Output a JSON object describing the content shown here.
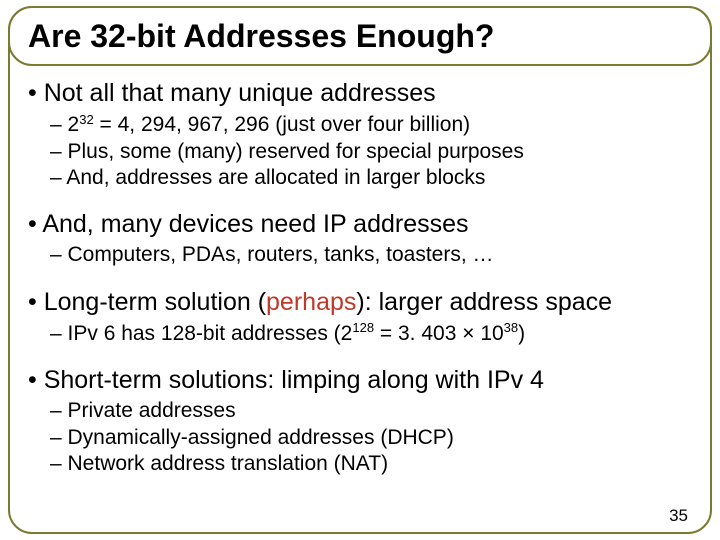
{
  "title": "Are 32-bit Addresses Enough?",
  "sections": [
    {
      "main": "Not all that many unique addresses",
      "subs": [
        {
          "pre": "– 2",
          "exp": "32",
          "post": " = 4, 294, 967, 296 (just over four billion)"
        },
        {
          "text": "– Plus, some (many) reserved for special purposes"
        },
        {
          "text": "– And, addresses are allocated in larger blocks"
        }
      ]
    },
    {
      "main": "And, many devices need IP addresses",
      "subs": [
        {
          "text": "– Computers, PDAs, routers, tanks, toasters, …"
        }
      ]
    },
    {
      "main_pre": "Long-term solution (",
      "main_hl": "perhaps",
      "main_post": "): larger address space",
      "subs": [
        {
          "pre": "– IPv 6 has 128-bit addresses (2",
          "exp": "128",
          "mid": " = 3. 403 × 10",
          "exp2": "38",
          "post": ")"
        }
      ]
    },
    {
      "main": "Short-term solutions: limping along with IPv 4",
      "subs": [
        {
          "text": "– Private addresses"
        },
        {
          "text": "– Dynamically-assigned addresses (DHCP)"
        },
        {
          "text": "– Network address translation (NAT)"
        }
      ]
    }
  ],
  "page_number": "35",
  "colors": {
    "border": "#7a7a33",
    "text": "#000000",
    "highlight": "#c03828",
    "background": "#ffffff"
  }
}
